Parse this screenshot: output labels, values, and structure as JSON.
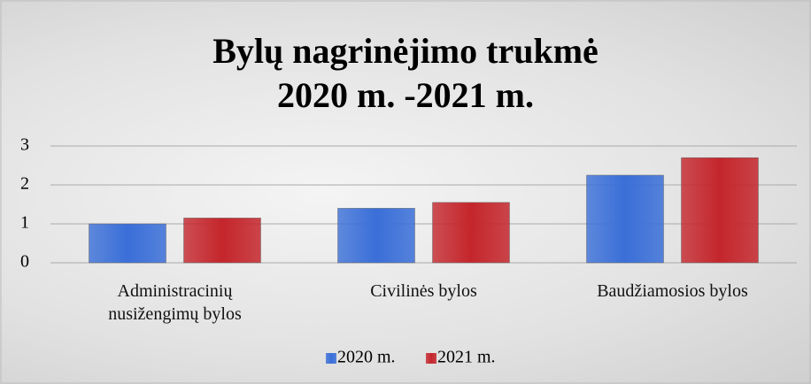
{
  "chart_data": {
    "type": "bar",
    "title": [
      "Bylų nagrinėjimo trukmė",
      "2020 m. -2021 m."
    ],
    "categories": [
      "Administracinių nusižengimų bylos",
      "Civilinės bylos",
      "Baudžiamosios bylos"
    ],
    "series": [
      {
        "name": "2020 m.",
        "color": "#3a6fd8",
        "values": [
          1.0,
          1.4,
          2.25
        ]
      },
      {
        "name": "2021 m.",
        "color": "#c4262c",
        "values": [
          1.15,
          1.55,
          2.7
        ]
      }
    ],
    "ylim": [
      0,
      3
    ],
    "yticks": [
      0,
      1,
      2,
      3
    ],
    "grid": true,
    "legend": "bottom"
  }
}
